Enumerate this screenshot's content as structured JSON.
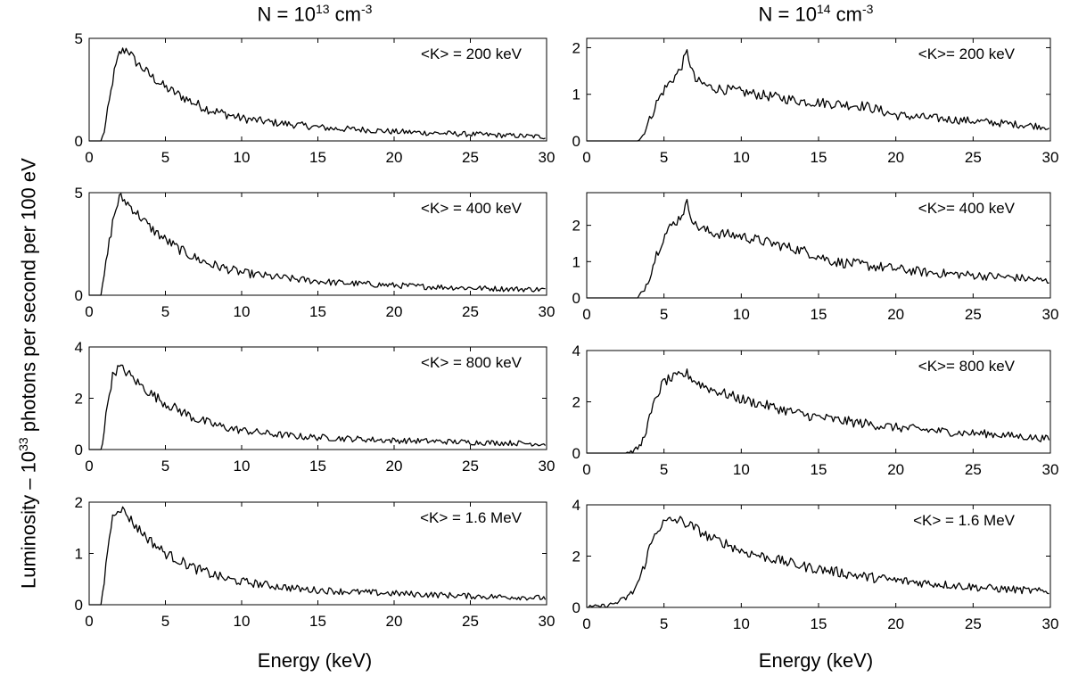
{
  "columns": [
    {
      "title_base": "N = 10",
      "title_exp": "13",
      "title_unit": " cm",
      "title_unit_exp": "-3"
    },
    {
      "title_base": "N = 10",
      "title_exp": "14",
      "title_unit": " cm",
      "title_unit_exp": "-3"
    }
  ],
  "ylabel": {
    "pre": "Luminosity – 10",
    "exp": "33",
    "post": " photons per second per 100 eV"
  },
  "xlabel": "Energy (keV)",
  "chart_data": [
    {
      "type": "line",
      "panel": "left-1",
      "annotation": "<K> = 200 keV",
      "xlim": [
        0,
        30
      ],
      "ylim": [
        0,
        5
      ],
      "yticks": [
        0,
        5
      ],
      "xticks": [
        0,
        5,
        10,
        15,
        20,
        25,
        30
      ],
      "x": [
        0,
        0.8,
        1.0,
        1.3,
        1.6,
        2.0,
        2.5,
        3.0,
        4,
        5,
        6,
        7,
        8,
        9,
        10,
        12,
        14,
        16,
        18,
        20,
        22,
        24,
        26,
        28,
        30
      ],
      "y": [
        0,
        0,
        0.5,
        1.8,
        3.2,
        4.3,
        4.5,
        3.9,
        3.2,
        2.6,
        2.2,
        1.8,
        1.5,
        1.3,
        1.1,
        0.9,
        0.75,
        0.6,
        0.55,
        0.45,
        0.4,
        0.35,
        0.3,
        0.25,
        0.2
      ]
    },
    {
      "type": "line",
      "panel": "right-1",
      "annotation": "<K>= 200 keV",
      "xlim": [
        0,
        30
      ],
      "ylim": [
        0,
        2.2
      ],
      "yticks": [
        0,
        1,
        2
      ],
      "xticks": [
        0,
        5,
        10,
        15,
        20,
        25,
        30
      ],
      "x": [
        0,
        3.3,
        3.6,
        4.0,
        4.5,
        5.0,
        5.5,
        6.0,
        6.5,
        7,
        8,
        9,
        10,
        12,
        14,
        16,
        18,
        20,
        22,
        24,
        26,
        28,
        30
      ],
      "y": [
        0,
        0,
        0.1,
        0.4,
        0.8,
        1.1,
        1.3,
        1.5,
        1.9,
        1.3,
        1.15,
        1.1,
        1.05,
        0.95,
        0.85,
        0.8,
        0.75,
        0.55,
        0.5,
        0.45,
        0.4,
        0.35,
        0.3
      ]
    },
    {
      "type": "line",
      "panel": "left-2",
      "annotation": "<K> = 400 keV",
      "xlim": [
        0,
        30
      ],
      "ylim": [
        0,
        5
      ],
      "yticks": [
        0,
        5
      ],
      "xticks": [
        0,
        5,
        10,
        15,
        20,
        25,
        30
      ],
      "x": [
        0,
        0.8,
        1.0,
        1.3,
        1.6,
        2.0,
        2.5,
        3.0,
        4,
        5,
        6,
        7,
        8,
        9,
        10,
        12,
        14,
        16,
        18,
        20,
        22,
        24,
        26,
        28,
        30
      ],
      "y": [
        0,
        0,
        1.0,
        2.5,
        3.8,
        4.8,
        4.5,
        4.1,
        3.3,
        2.7,
        2.2,
        1.8,
        1.5,
        1.3,
        1.1,
        0.9,
        0.75,
        0.62,
        0.55,
        0.48,
        0.42,
        0.38,
        0.33,
        0.3,
        0.28
      ]
    },
    {
      "type": "line",
      "panel": "right-2",
      "annotation": "<K>= 400 keV",
      "xlim": [
        0,
        30
      ],
      "ylim": [
        0,
        2.9
      ],
      "yticks": [
        0,
        1,
        2
      ],
      "xticks": [
        0,
        5,
        10,
        15,
        20,
        25,
        30
      ],
      "x": [
        0,
        3.3,
        3.6,
        4.0,
        4.5,
        5.0,
        5.5,
        6.0,
        6.5,
        7,
        8,
        9,
        10,
        12,
        14,
        16,
        18,
        20,
        22,
        24,
        26,
        28,
        30
      ],
      "y": [
        0,
        0,
        0.15,
        0.5,
        1.2,
        1.7,
        2.0,
        2.2,
        2.6,
        2.0,
        1.8,
        1.75,
        1.7,
        1.5,
        1.3,
        1.0,
        0.9,
        0.8,
        0.7,
        0.65,
        0.6,
        0.55,
        0.45
      ]
    },
    {
      "type": "line",
      "panel": "left-3",
      "annotation": "<K> = 800 keV",
      "xlim": [
        0,
        30
      ],
      "ylim": [
        0,
        4
      ],
      "yticks": [
        0,
        2,
        4
      ],
      "xticks": [
        0,
        5,
        10,
        15,
        20,
        25,
        30
      ],
      "x": [
        0,
        0.8,
        1.0,
        1.3,
        1.6,
        2.0,
        2.5,
        3.0,
        4,
        5,
        6,
        7,
        8,
        9,
        10,
        12,
        14,
        16,
        18,
        20,
        22,
        24,
        26,
        28,
        30
      ],
      "y": [
        0,
        0,
        0.8,
        2.2,
        3.0,
        3.2,
        3.0,
        2.7,
        2.2,
        1.8,
        1.5,
        1.2,
        1.0,
        0.85,
        0.75,
        0.6,
        0.5,
        0.45,
        0.4,
        0.35,
        0.33,
        0.3,
        0.27,
        0.25,
        0.22
      ]
    },
    {
      "type": "line",
      "panel": "right-3",
      "annotation": "<K>= 800 keV",
      "xlim": [
        0,
        30
      ],
      "ylim": [
        0,
        4
      ],
      "yticks": [
        0,
        2,
        4
      ],
      "xticks": [
        0,
        5,
        10,
        15,
        20,
        25,
        30
      ],
      "x": [
        0,
        2.5,
        3.0,
        3.5,
        4.0,
        4.5,
        5.0,
        5.5,
        6.0,
        6.5,
        7,
        8,
        9,
        10,
        12,
        14,
        16,
        18,
        20,
        22,
        24,
        26,
        28,
        30
      ],
      "y": [
        0,
        0,
        0.05,
        0.3,
        1.2,
        2.2,
        2.8,
        2.9,
        3.0,
        3.1,
        2.8,
        2.5,
        2.3,
        2.1,
        1.8,
        1.5,
        1.3,
        1.15,
        1.0,
        0.9,
        0.8,
        0.75,
        0.65,
        0.55
      ]
    },
    {
      "type": "line",
      "panel": "left-4",
      "annotation": "<K> = 1.6 MeV",
      "xlim": [
        0,
        30
      ],
      "ylim": [
        0,
        2
      ],
      "yticks": [
        0,
        1,
        2
      ],
      "xticks": [
        0,
        5,
        10,
        15,
        20,
        25,
        30
      ],
      "x": [
        0,
        0.8,
        1.0,
        1.3,
        1.6,
        2.0,
        2.5,
        3.0,
        4,
        5,
        6,
        7,
        8,
        9,
        10,
        12,
        14,
        16,
        18,
        20,
        22,
        24,
        26,
        28,
        30
      ],
      "y": [
        0,
        0,
        0.5,
        1.3,
        1.8,
        1.9,
        1.75,
        1.55,
        1.25,
        1.0,
        0.85,
        0.7,
        0.6,
        0.5,
        0.45,
        0.37,
        0.3,
        0.27,
        0.24,
        0.22,
        0.2,
        0.18,
        0.16,
        0.15,
        0.13
      ]
    },
    {
      "type": "line",
      "panel": "right-4",
      "annotation": "<K> = 1.6 MeV",
      "xlim": [
        0,
        30
      ],
      "ylim": [
        0,
        4
      ],
      "yticks": [
        0,
        2,
        4
      ],
      "xticks": [
        0,
        5,
        10,
        15,
        20,
        25,
        30
      ],
      "x": [
        0,
        0.5,
        1.0,
        1.5,
        2.0,
        2.5,
        3.0,
        3.5,
        4.0,
        4.5,
        5.0,
        5.5,
        6.0,
        7,
        8,
        9,
        10,
        12,
        14,
        16,
        18,
        20,
        22,
        24,
        26,
        28,
        30
      ],
      "y": [
        0,
        0.02,
        0.05,
        0.1,
        0.2,
        0.35,
        0.6,
        1.2,
        2.2,
        3.0,
        3.3,
        3.4,
        3.4,
        3.1,
        2.7,
        2.5,
        2.2,
        1.9,
        1.6,
        1.4,
        1.2,
        1.05,
        0.95,
        0.85,
        0.75,
        0.68,
        0.6
      ]
    }
  ]
}
